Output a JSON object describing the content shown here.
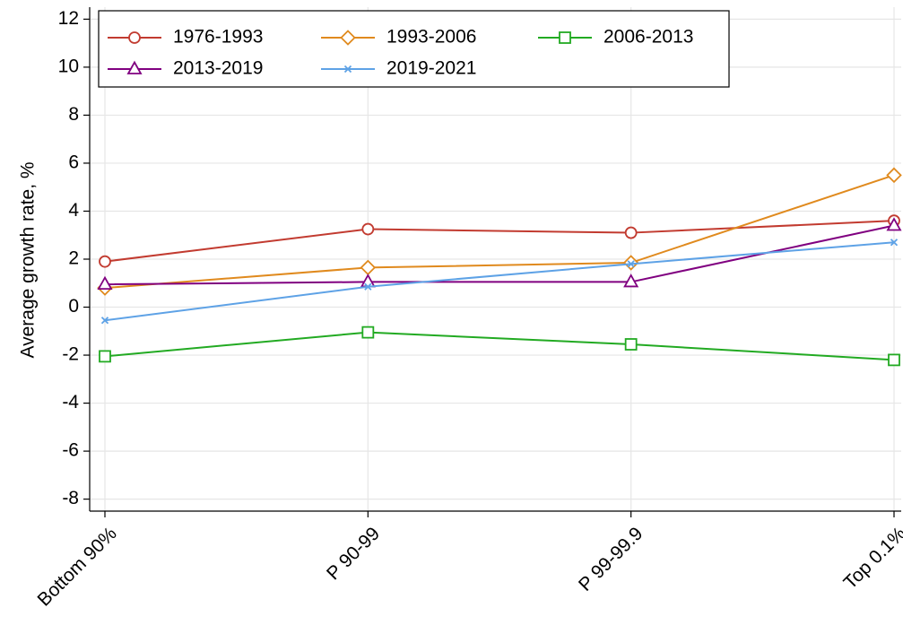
{
  "chart_data": {
    "type": "line",
    "y_label": "Average growth rate, %",
    "categories": [
      "Bottom 90%",
      "P 90-99",
      "P 99-99.9",
      "Top 0.1%"
    ],
    "series": [
      {
        "name": "1976-1993",
        "color": "#c23b30",
        "marker": "circle",
        "values": [
          1.9,
          3.25,
          3.1,
          3.6
        ]
      },
      {
        "name": "1993-2006",
        "color": "#e08a1e",
        "marker": "diamond",
        "values": [
          0.8,
          1.65,
          1.85,
          5.5
        ]
      },
      {
        "name": "2006-2013",
        "color": "#22aa22",
        "marker": "square",
        "values": [
          -2.05,
          -1.05,
          -1.55,
          -2.2
        ]
      },
      {
        "name": "2013-2019",
        "color": "#800080",
        "marker": "triangle",
        "values": [
          0.95,
          1.05,
          1.05,
          3.4
        ]
      },
      {
        "name": "2019-2021",
        "color": "#5ea2e6",
        "marker": "x",
        "values": [
          -0.55,
          0.85,
          1.8,
          2.7
        ]
      }
    ],
    "ylim": [
      -8.5,
      12.5
    ],
    "yticks": [
      -8,
      -6,
      -4,
      -2,
      0,
      2,
      4,
      6,
      8,
      10,
      12
    ],
    "grid": true,
    "legend_position": "top-left"
  }
}
